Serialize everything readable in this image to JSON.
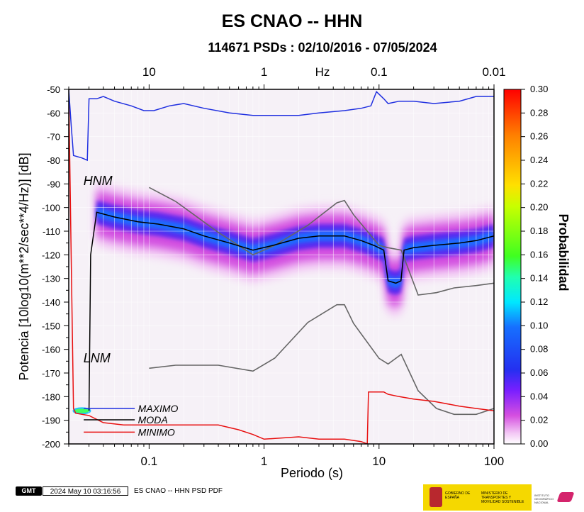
{
  "chart_data": {
    "type": "heatmap",
    "title": "ES CNAO -- HHN",
    "subtitle": "114671 PSDs : 02/10/2016 - 07/05/2024",
    "xlabel": "Periodo (s)",
    "ylabel": "Potencia [10log10(m**2/sec**4/Hz)] [dB]",
    "x_scale": "log",
    "xlim": [
      0.02,
      100
    ],
    "ylim": [
      -200,
      -50
    ],
    "x_ticks": [
      0.1,
      1,
      10,
      100
    ],
    "x_tick_labels": [
      "0.1",
      "1",
      "10",
      "100"
    ],
    "y_ticks": [
      -200,
      -190,
      -180,
      -170,
      -160,
      -150,
      -140,
      -130,
      -120,
      -110,
      -100,
      -90,
      -80,
      -70,
      -60,
      -50
    ],
    "y_tick_labels": [
      "-200",
      "-190",
      "-180",
      "-170",
      "-160",
      "-150",
      "-140",
      "-130",
      "-120",
      "-110",
      "-100",
      "-90",
      "-80",
      "-70",
      "-60",
      "-50"
    ],
    "top_axis": {
      "label": "Hz",
      "ticks": [
        10,
        1,
        0.1,
        0.01
      ],
      "tick_labels": [
        "10",
        "1",
        "0.1",
        "0.01"
      ]
    },
    "colorbar": {
      "label": "Probabilidad",
      "range": [
        0,
        0.3
      ],
      "ticks": [
        0.0,
        0.02,
        0.04,
        0.06,
        0.08,
        0.1,
        0.12,
        0.14,
        0.16,
        0.18,
        0.2,
        0.22,
        0.24,
        0.26,
        0.28,
        0.3
      ],
      "tick_labels": [
        "0.00",
        "0.02",
        "0.04",
        "0.06",
        "0.08",
        "0.10",
        "0.12",
        "0.14",
        "0.16",
        "0.18",
        "0.20",
        "0.22",
        "0.24",
        "0.26",
        "0.28",
        "0.30"
      ]
    },
    "legend": {
      "placement": "bottom-left",
      "entries": [
        {
          "name": "MAXIMO",
          "color": "#1f2fe0"
        },
        {
          "name": "MODA",
          "color": "#000000"
        },
        {
          "name": "MINIMO",
          "color": "#e81010"
        }
      ]
    },
    "annotations": [
      {
        "text": "HNM",
        "x": 0.028,
        "y": -89
      },
      {
        "text": "LNM",
        "x": 0.028,
        "y": -164
      }
    ],
    "series": [
      {
        "name": "MAXIMO",
        "x": [
          0.02,
          0.021,
          0.022,
          0.026,
          0.029,
          0.03,
          0.035,
          0.04,
          0.05,
          0.07,
          0.09,
          0.11,
          0.15,
          0.2,
          0.3,
          0.5,
          0.8,
          1.2,
          2.0,
          3.0,
          5.0,
          7.0,
          8.5,
          9.5,
          11.0,
          12.0,
          15.0,
          20.0,
          30.0,
          50.0,
          70.0,
          100.0
        ],
        "y": [
          -50,
          -65,
          -78,
          -79,
          -80,
          -54,
          -54,
          -53,
          -55,
          -57,
          -59,
          -59,
          -57,
          -56,
          -58,
          -60,
          -61,
          -61,
          -61,
          -60,
          -59,
          -58,
          -57,
          -51,
          -54,
          -56,
          -55,
          -55,
          -56,
          -55,
          -53,
          -53
        ]
      },
      {
        "name": "MODA",
        "x": [
          0.03,
          0.031,
          0.035,
          0.05,
          0.08,
          0.12,
          0.2,
          0.3,
          0.5,
          0.8,
          1.2,
          2.0,
          3.0,
          5.0,
          7.0,
          9.0,
          11.0,
          12.0,
          14.0,
          15.5,
          16.5,
          20.0,
          30.0,
          50.0,
          70.0,
          100.0
        ],
        "y": [
          -186,
          -120,
          -102,
          -104,
          -106,
          -107,
          -109,
          -112,
          -115,
          -118,
          -116,
          -113,
          -112,
          -112,
          -114,
          -116,
          -118,
          -131,
          -132,
          -131,
          -118,
          -117,
          -116,
          -115,
          -114,
          -112
        ]
      },
      {
        "name": "MINIMO",
        "x": [
          0.02,
          0.021,
          0.022,
          0.023,
          0.03,
          0.04,
          0.06,
          0.1,
          0.2,
          0.4,
          0.6,
          0.8,
          1.0,
          2.0,
          3.0,
          5.0,
          7.0,
          7.9,
          8.1,
          9.0,
          11.0,
          12.0,
          15.0,
          20.0,
          30.0,
          50.0,
          70.0,
          100.0
        ],
        "y": [
          -50,
          -120,
          -185,
          -187,
          -188,
          -191,
          -192,
          -192,
          -192,
          -192,
          -194,
          -196,
          -198,
          -197,
          -198,
          -198,
          -199,
          -200,
          -178,
          -178,
          -178,
          -179,
          -180,
          -181,
          -182,
          -184,
          -185,
          -186
        ]
      },
      {
        "name": "NHNM",
        "x": [
          0.1,
          0.17,
          0.4,
          0.8,
          1.24,
          2.4,
          4.3,
          5.0,
          6.0,
          10.0,
          12.0,
          15.6,
          21.9,
          31.6,
          45.0,
          70.0,
          100.0
        ],
        "y": [
          -91.5,
          -97.4,
          -110.5,
          -120.0,
          -116.0,
          -107.5,
          -98.0,
          -97.0,
          -103.0,
          -116.0,
          -117.0,
          -118.0,
          -137.0,
          -136.0,
          -134.0,
          -133.0,
          -132.0
        ]
      },
      {
        "name": "NLNM",
        "x": [
          0.1,
          0.17,
          0.4,
          0.8,
          1.24,
          2.4,
          4.3,
          5.0,
          6.0,
          10.0,
          12.0,
          15.6,
          21.9,
          31.6,
          45.0,
          70.0,
          100.0
        ],
        "y": [
          -168.0,
          -166.7,
          -166.7,
          -169.2,
          -163.7,
          -148.6,
          -141.1,
          -141.1,
          -149.0,
          -163.8,
          -166.2,
          -162.1,
          -177.5,
          -185.0,
          -187.5,
          -187.5,
          -185.0
        ]
      }
    ]
  },
  "footer": {
    "logo_text": "GMT",
    "timestamp": "2024 May 10 03:16:56",
    "note": "ES CNAO -- HHN PSD PDF"
  },
  "logos": {
    "gov_text": "GOBIERNO DE ESPAÑA",
    "ministry_text": "MINISTERIO DE TRANSPORTES Y MOVILIDAD SOSTENIBLE",
    "ign_text": "INSTITUTO GEOGRÁFICO NACIONAL"
  }
}
